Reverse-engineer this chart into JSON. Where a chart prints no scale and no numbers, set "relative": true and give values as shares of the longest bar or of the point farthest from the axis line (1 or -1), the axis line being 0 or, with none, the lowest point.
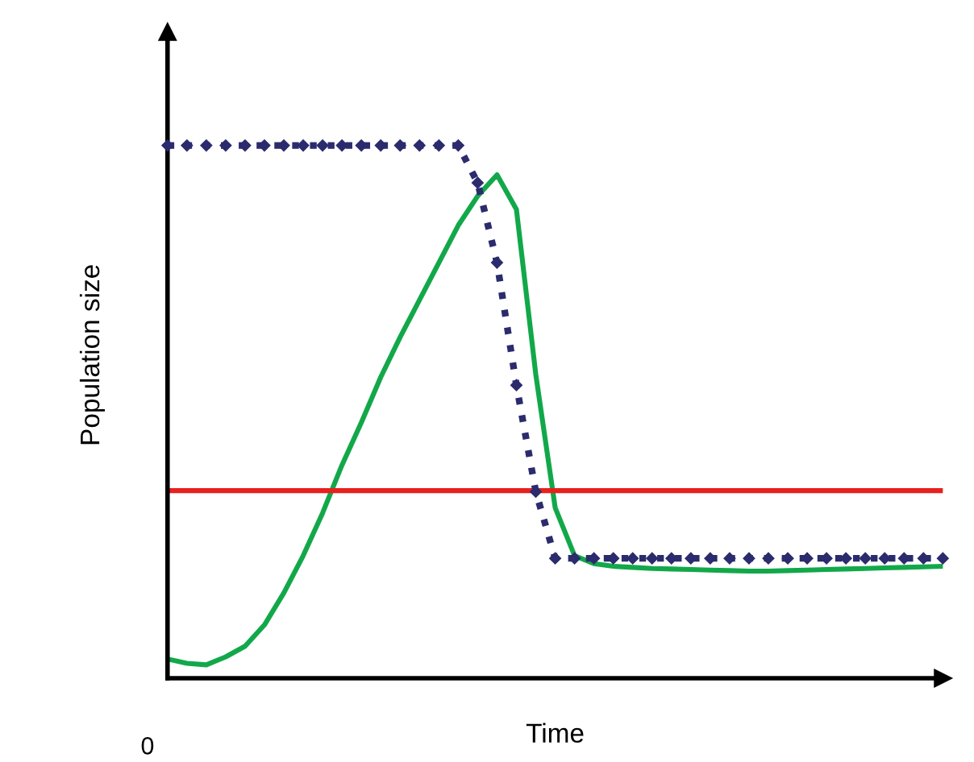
{
  "chart_data": {
    "type": "line",
    "relative": true,
    "xlabel": "Time",
    "ylabel": "Population size",
    "annotations": [
      "0"
    ],
    "legend": false,
    "categories": [
      null,
      null,
      null,
      null,
      null,
      null,
      null,
      null,
      null,
      null,
      null,
      null,
      null,
      null,
      null,
      null,
      null,
      null,
      null,
      null,
      null,
      null,
      null,
      null,
      null,
      null,
      null,
      null,
      null,
      null,
      null,
      null,
      null,
      null,
      null,
      null,
      null,
      null,
      null,
      null,
      null
    ],
    "series": [
      {
        "color": "#2b2b6e",
        "marker": "diamond",
        "line_style": "dotted",
        "values": [
          1,
          1,
          1,
          1,
          1,
          1,
          1,
          1,
          1,
          1,
          1,
          1,
          1,
          1,
          1,
          1,
          0.93,
          0.78,
          0.55,
          0.35,
          0.225,
          0.225,
          0.225,
          0.225,
          0.225,
          0.225,
          0.225,
          0.225,
          0.225,
          0.225,
          0.225,
          0.225,
          0.225,
          0.225,
          0.225,
          0.225,
          0.225,
          0.225,
          0.225,
          0.225,
          0.225
        ]
      },
      {
        "color": "#12a84a",
        "marker": "none",
        "line_style": "solid",
        "values": [
          0.036,
          0.028,
          0.025,
          0.04,
          0.06,
          0.1,
          0.16,
          0.23,
          0.31,
          0.4,
          0.48,
          0.565,
          0.64,
          0.71,
          0.78,
          0.85,
          0.905,
          0.945,
          0.88,
          0.57,
          0.32,
          0.23,
          0.215,
          0.21,
          0.208,
          0.206,
          0.205,
          0.204,
          0.203,
          0.202,
          0.201,
          0.201,
          0.202,
          0.203,
          0.204,
          0.205,
          0.206,
          0.207,
          0.208,
          0.209,
          0.21
        ]
      },
      {
        "color": "#e8201e",
        "marker": "none",
        "line_style": "solid",
        "values": [
          0.352,
          0.352,
          0.352,
          0.352,
          0.352,
          0.352,
          0.352,
          0.352,
          0.352,
          0.352,
          0.352,
          0.352,
          0.352,
          0.352,
          0.352,
          0.352,
          0.352,
          0.352,
          0.352,
          0.352,
          0.352,
          0.352,
          0.352,
          0.352,
          0.352,
          0.352,
          0.352,
          0.352,
          0.352,
          0.352,
          0.352,
          0.352,
          0.352,
          0.352,
          0.352,
          0.352,
          0.352,
          0.352,
          0.352,
          0.352,
          0.352
        ]
      }
    ]
  }
}
